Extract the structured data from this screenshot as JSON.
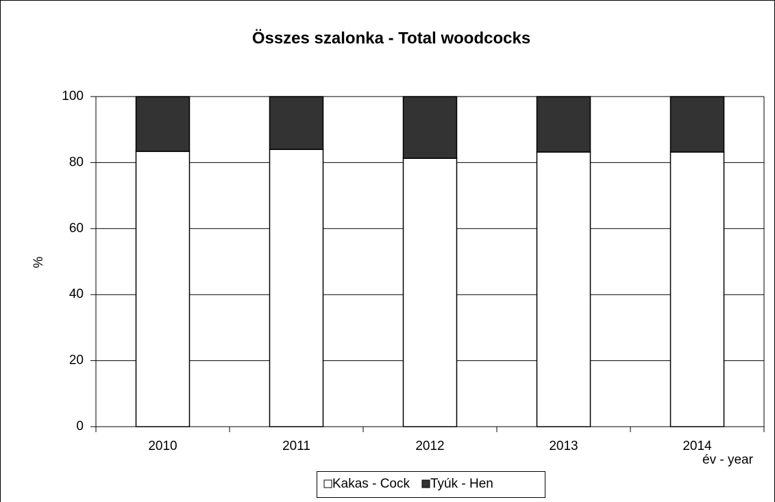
{
  "chart_data": {
    "type": "stacked_bar",
    "title": "Összes szalonka - Total woodcocks",
    "y_label": "%",
    "x_label": "év - year",
    "categories": [
      "2010",
      "2011",
      "2012",
      "2013",
      "2014"
    ],
    "series": [
      {
        "name": "Kakas - Cock",
        "color": "#ffffff",
        "values": [
          83.4,
          84.0,
          81.3,
          83.2,
          83.2
        ]
      },
      {
        "name": "Tyúk - Hen",
        "color": "#333333",
        "values": [
          16.6,
          16.0,
          18.7,
          16.8,
          16.8
        ]
      }
    ],
    "ylim": [
      0,
      100
    ],
    "yticks": [
      0,
      20,
      40,
      60,
      80,
      100
    ],
    "grid": true
  }
}
